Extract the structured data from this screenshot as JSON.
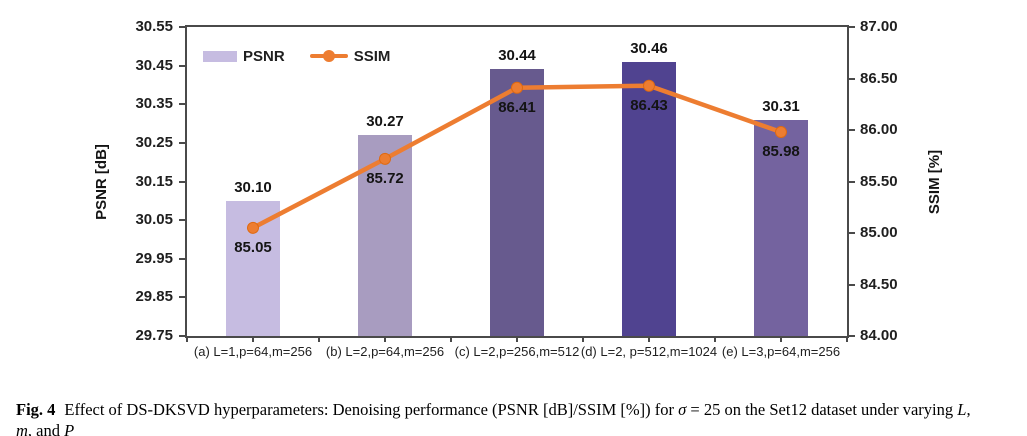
{
  "chart_data": {
    "type": "bar+line",
    "categories": [
      "(a) L=1,p=64,m=256",
      "(b) L=2,p=64,m=256",
      "(c) L=2,p=256,m=512",
      "(d) L=2, p=512,m=1024",
      "(e) L=3,p=64,m=256"
    ],
    "series": [
      {
        "name": "PSNR",
        "type": "bar",
        "axis": "left",
        "values": [
          30.1,
          30.27,
          30.44,
          30.46,
          30.31
        ],
        "labels": [
          "30.10",
          "30.27",
          "30.44",
          "30.46",
          "30.31"
        ],
        "bar_colors": [
          "#c6bce1",
          "#a89cc0",
          "#675a8e",
          "#504390",
          "#74639f"
        ]
      },
      {
        "name": "SSIM",
        "type": "line",
        "axis": "right",
        "values": [
          85.05,
          85.72,
          86.41,
          86.43,
          85.98
        ],
        "labels": [
          "85.05",
          "85.72",
          "86.41",
          "86.43",
          "85.98"
        ],
        "color": "#ed7d31"
      }
    ],
    "left_axis": {
      "label": "PSNR [dB]",
      "min": 29.75,
      "max": 30.55,
      "step": 0.1,
      "ticks": [
        "30.55",
        "30.45",
        "30.35",
        "30.25",
        "30.15",
        "30.05",
        "29.95",
        "29.85",
        "29.75"
      ]
    },
    "right_axis": {
      "label": "SSIM [%]",
      "min": 84.0,
      "max": 87.0,
      "step": 0.5,
      "ticks": [
        "87.00",
        "86.50",
        "86.00",
        "85.50",
        "85.00",
        "84.50",
        "84.00"
      ]
    },
    "legend": [
      {
        "label": "PSNR",
        "swatch_type": "bar",
        "color": "#c6bce1"
      },
      {
        "label": "SSIM",
        "swatch_type": "line",
        "color": "#ed7d31"
      }
    ],
    "grid": "off",
    "legend_position": "top-left-inside"
  },
  "caption": {
    "fig": "Fig. 4",
    "part1": "Effect of DS-DKSVD hyperparameters: Denoising performance (PSNR [dB]/SSIM [%]) for ",
    "sigma": "σ",
    "part2": " = 25 on the Set12 dataset under varying ",
    "varL": "L",
    "comma": ",",
    "varm": "m",
    "part3": ", and ",
    "varP": "P"
  }
}
